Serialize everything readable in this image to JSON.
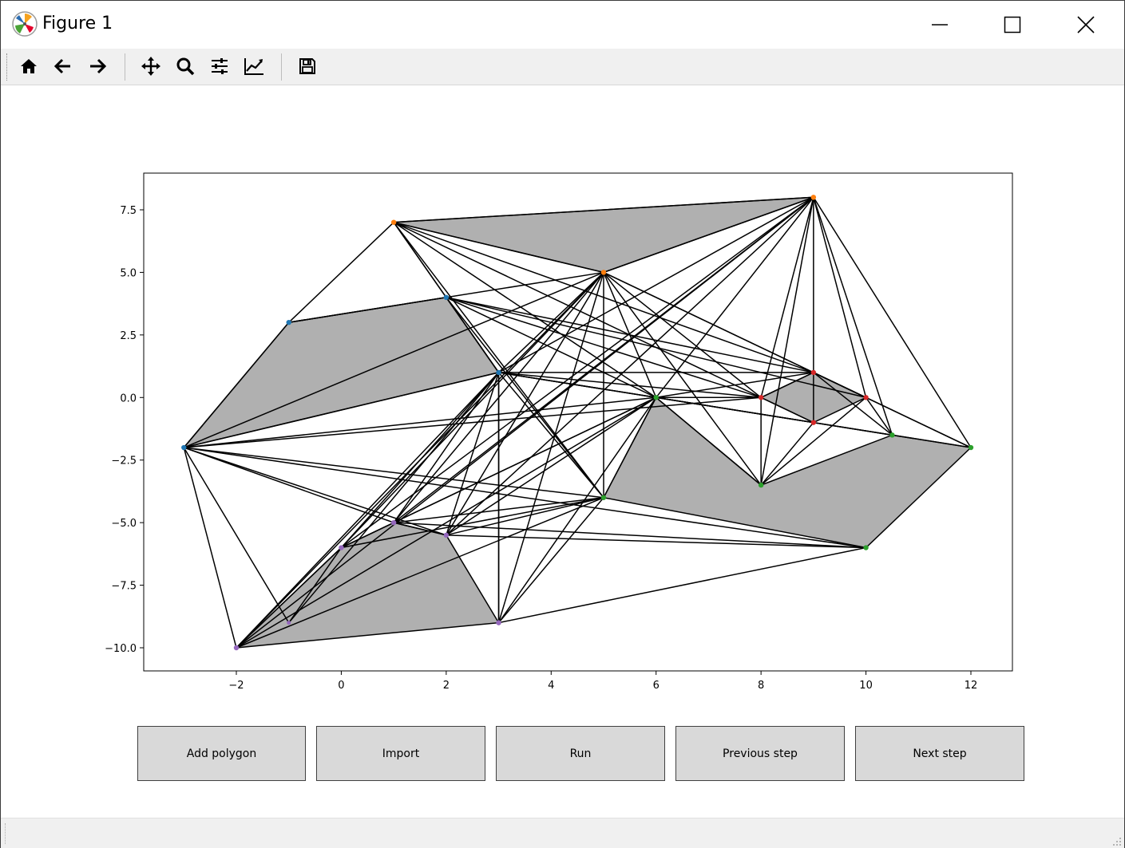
{
  "window": {
    "title": "Figure 1"
  },
  "toolbar": {
    "items": [
      {
        "icon": "home-icon"
      },
      {
        "icon": "back-arrow-icon"
      },
      {
        "icon": "forward-arrow-icon"
      },
      {
        "icon": "pan-icon"
      },
      {
        "icon": "zoom-icon"
      },
      {
        "icon": "configure-subplots-icon"
      },
      {
        "icon": "edit-axes-icon"
      },
      {
        "icon": "save-icon"
      }
    ]
  },
  "buttons": {
    "add_polygon": "Add polygon",
    "import": "Import",
    "run": "Run",
    "previous_step": "Previous step",
    "next_step": "Next step"
  },
  "chart_data": {
    "type": "scatter",
    "title": "",
    "xlabel": "",
    "ylabel": "",
    "xlim": [
      -3.75,
      12.8
    ],
    "ylim": [
      -10.9,
      8.9
    ],
    "xticks": [
      -2,
      0,
      2,
      4,
      6,
      8,
      10,
      12
    ],
    "xtick_labels": [
      "−2",
      "0",
      "2",
      "4",
      "6",
      "8",
      "10",
      "12"
    ],
    "yticks": [
      7.5,
      5.0,
      2.5,
      0.0,
      -2.5,
      -5.0,
      -7.5,
      -10.0
    ],
    "ytick_labels": [
      "7.5",
      "5.0",
      "2.5",
      "0.0",
      "−2.5",
      "−5.0",
      "−7.5",
      "−10.0"
    ],
    "grid": false,
    "fill_color": "#b0b0b0",
    "polygons": [
      {
        "color": "#1f77b4",
        "vertices": [
          [
            -3,
            -2
          ],
          [
            -1,
            3
          ],
          [
            2,
            4
          ],
          [
            3,
            1
          ]
        ]
      },
      {
        "color": "#ff7f0e",
        "vertices": [
          [
            1,
            7
          ],
          [
            9,
            8
          ],
          [
            5,
            5
          ]
        ]
      },
      {
        "color": "#2ca02c",
        "vertices": [
          [
            5,
            -4
          ],
          [
            6,
            0
          ],
          [
            8,
            -3.5
          ],
          [
            10.5,
            -1.5
          ],
          [
            12,
            -2
          ],
          [
            10,
            -6
          ]
        ]
      },
      {
        "color": "#d62728",
        "vertices": [
          [
            8,
            0
          ],
          [
            9,
            1
          ],
          [
            10,
            0
          ],
          [
            9,
            -1
          ]
        ]
      },
      {
        "color": "#9467bd",
        "vertices": [
          [
            -2,
            -10
          ],
          [
            0,
            -6
          ],
          [
            1,
            -5
          ],
          [
            2,
            -5.5
          ],
          [
            3,
            -9
          ]
        ]
      }
    ],
    "extra_points": [
      {
        "color": "#9467bd",
        "x": -1,
        "y": -9
      },
      {
        "color": "#1f77b4",
        "x": 3,
        "y": 1
      },
      {
        "color": "#2ca02c",
        "x": 10.5,
        "y": -1.5
      }
    ],
    "segments": [
      [
        [
          1,
          7
        ],
        [
          -1,
          3
        ]
      ],
      [
        [
          1,
          7
        ],
        [
          2,
          4
        ]
      ],
      [
        [
          1,
          7
        ],
        [
          3,
          1
        ]
      ],
      [
        [
          1,
          7
        ],
        [
          5,
          -4
        ]
      ],
      [
        [
          1,
          7
        ],
        [
          6,
          0
        ]
      ],
      [
        [
          1,
          7
        ],
        [
          8,
          0
        ]
      ],
      [
        [
          1,
          7
        ],
        [
          9,
          1
        ]
      ],
      [
        [
          1,
          7
        ],
        [
          9,
          8
        ]
      ],
      [
        [
          1,
          7
        ],
        [
          5,
          5
        ]
      ],
      [
        [
          -1,
          3
        ],
        [
          -3,
          -2
        ]
      ],
      [
        [
          -1,
          3
        ],
        [
          5,
          5
        ]
      ],
      [
        [
          -1,
          3
        ],
        [
          2,
          4
        ]
      ],
      [
        [
          2,
          4
        ],
        [
          3,
          1
        ]
      ],
      [
        [
          2,
          4
        ],
        [
          9,
          1
        ]
      ],
      [
        [
          2,
          4
        ],
        [
          8,
          0
        ]
      ],
      [
        [
          2,
          4
        ],
        [
          6,
          0
        ]
      ],
      [
        [
          2,
          4
        ],
        [
          5,
          -4
        ]
      ],
      [
        [
          2,
          4
        ],
        [
          10,
          0
        ]
      ],
      [
        [
          -3,
          -2
        ],
        [
          3,
          1
        ]
      ],
      [
        [
          -3,
          -2
        ],
        [
          6,
          0
        ]
      ],
      [
        [
          -3,
          -2
        ],
        [
          5,
          5
        ]
      ],
      [
        [
          -3,
          -2
        ],
        [
          5,
          -4
        ]
      ],
      [
        [
          -3,
          -2
        ],
        [
          10,
          -6
        ]
      ],
      [
        [
          -3,
          -2
        ],
        [
          2,
          -5.5
        ]
      ],
      [
        [
          -3,
          -2
        ],
        [
          1,
          -5
        ]
      ],
      [
        [
          -3,
          -2
        ],
        [
          -2,
          -10
        ]
      ],
      [
        [
          -3,
          -2
        ],
        [
          -1,
          -9
        ]
      ],
      [
        [
          -3,
          -2
        ],
        [
          8,
          0
        ]
      ],
      [
        [
          5,
          5
        ],
        [
          9,
          8
        ]
      ],
      [
        [
          5,
          5
        ],
        [
          3,
          1
        ]
      ],
      [
        [
          5,
          5
        ],
        [
          5,
          -4
        ]
      ],
      [
        [
          5,
          5
        ],
        [
          6,
          0
        ]
      ],
      [
        [
          5,
          5
        ],
        [
          9,
          1
        ]
      ],
      [
        [
          5,
          5
        ],
        [
          10,
          0
        ]
      ],
      [
        [
          5,
          5
        ],
        [
          8,
          0
        ]
      ],
      [
        [
          5,
          5
        ],
        [
          1,
          -5
        ]
      ],
      [
        [
          5,
          5
        ],
        [
          2,
          -5.5
        ]
      ],
      [
        [
          5,
          5
        ],
        [
          3,
          -9
        ]
      ],
      [
        [
          5,
          5
        ],
        [
          0,
          -6
        ]
      ],
      [
        [
          5,
          5
        ],
        [
          -2,
          -10
        ]
      ],
      [
        [
          5,
          5
        ],
        [
          8,
          -3.5
        ]
      ],
      [
        [
          9,
          8
        ],
        [
          3,
          1
        ]
      ],
      [
        [
          9,
          8
        ],
        [
          6,
          0
        ]
      ],
      [
        [
          9,
          8
        ],
        [
          9,
          1
        ]
      ],
      [
        [
          9,
          8
        ],
        [
          10,
          0
        ]
      ],
      [
        [
          9,
          8
        ],
        [
          12,
          -2
        ]
      ],
      [
        [
          9,
          8
        ],
        [
          10.5,
          -1.5
        ]
      ],
      [
        [
          9,
          8
        ],
        [
          8,
          0
        ]
      ],
      [
        [
          9,
          8
        ],
        [
          1,
          -5
        ]
      ],
      [
        [
          9,
          8
        ],
        [
          2,
          -5.5
        ]
      ],
      [
        [
          9,
          8
        ],
        [
          8,
          -3.5
        ]
      ],
      [
        [
          9,
          8
        ],
        [
          -2,
          -10
        ]
      ],
      [
        [
          9,
          8
        ],
        [
          0,
          -6
        ]
      ],
      [
        [
          3,
          1
        ],
        [
          9,
          1
        ]
      ],
      [
        [
          3,
          1
        ],
        [
          6,
          0
        ]
      ],
      [
        [
          3,
          1
        ],
        [
          8,
          0
        ]
      ],
      [
        [
          3,
          1
        ],
        [
          9,
          -1
        ]
      ],
      [
        [
          3,
          1
        ],
        [
          5,
          -4
        ]
      ],
      [
        [
          3,
          1
        ],
        [
          3,
          -9
        ]
      ],
      [
        [
          3,
          1
        ],
        [
          2,
          -5.5
        ]
      ],
      [
        [
          3,
          1
        ],
        [
          1,
          -5
        ]
      ],
      [
        [
          3,
          1
        ],
        [
          0,
          -6
        ]
      ],
      [
        [
          3,
          1
        ],
        [
          -2,
          -10
        ]
      ],
      [
        [
          3,
          1
        ],
        [
          -1,
          -9
        ]
      ],
      [
        [
          3,
          1
        ],
        [
          10.5,
          -1.5
        ]
      ],
      [
        [
          6,
          0
        ],
        [
          9,
          1
        ]
      ],
      [
        [
          6,
          0
        ],
        [
          8,
          0
        ]
      ],
      [
        [
          6,
          0
        ],
        [
          1,
          -5
        ]
      ],
      [
        [
          6,
          0
        ],
        [
          2,
          -5.5
        ]
      ],
      [
        [
          6,
          0
        ],
        [
          3,
          -9
        ]
      ],
      [
        [
          6,
          0
        ],
        [
          0,
          -6
        ]
      ],
      [
        [
          6,
          0
        ],
        [
          -2,
          -10
        ]
      ],
      [
        [
          6,
          0
        ],
        [
          9,
          -1
        ]
      ],
      [
        [
          6,
          0
        ],
        [
          5,
          -4
        ]
      ],
      [
        [
          8,
          0
        ],
        [
          8,
          -3.5
        ]
      ],
      [
        [
          8,
          0
        ],
        [
          9,
          1
        ]
      ],
      [
        [
          8,
          0
        ],
        [
          9,
          -1
        ]
      ],
      [
        [
          9,
          1
        ],
        [
          10,
          0
        ]
      ],
      [
        [
          9,
          1
        ],
        [
          10.5,
          -1.5
        ]
      ],
      [
        [
          9,
          1
        ],
        [
          9,
          -1
        ]
      ],
      [
        [
          9,
          1
        ],
        [
          12,
          -2
        ]
      ],
      [
        [
          8,
          -3.5
        ],
        [
          9,
          -1
        ]
      ],
      [
        [
          8,
          -3.5
        ],
        [
          10,
          0
        ]
      ],
      [
        [
          8,
          -3.5
        ],
        [
          6,
          0
        ]
      ],
      [
        [
          10,
          0
        ],
        [
          10.5,
          -1.5
        ]
      ],
      [
        [
          10,
          0
        ],
        [
          12,
          -2
        ]
      ],
      [
        [
          9,
          -1
        ],
        [
          10.5,
          -1.5
        ]
      ],
      [
        [
          6,
          0
        ],
        [
          12,
          -2
        ]
      ],
      [
        [
          5,
          -4
        ],
        [
          1,
          -5
        ]
      ],
      [
        [
          5,
          -4
        ],
        [
          2,
          -5.5
        ]
      ],
      [
        [
          5,
          -4
        ],
        [
          3,
          -9
        ]
      ],
      [
        [
          5,
          -4
        ],
        [
          0,
          -6
        ]
      ],
      [
        [
          5,
          -4
        ],
        [
          -2,
          -10
        ]
      ],
      [
        [
          10,
          -6
        ],
        [
          1,
          -5
        ]
      ],
      [
        [
          10,
          -6
        ],
        [
          2,
          -5.5
        ]
      ],
      [
        [
          10,
          -6
        ],
        [
          3,
          -9
        ]
      ],
      [
        [
          3,
          -9
        ],
        [
          3,
          1
        ]
      ],
      [
        [
          1,
          -5
        ],
        [
          2,
          -5.5
        ]
      ],
      [
        [
          -1,
          -9
        ],
        [
          0,
          -6
        ]
      ],
      [
        [
          0,
          -6
        ],
        [
          -2,
          -10
        ]
      ]
    ]
  }
}
